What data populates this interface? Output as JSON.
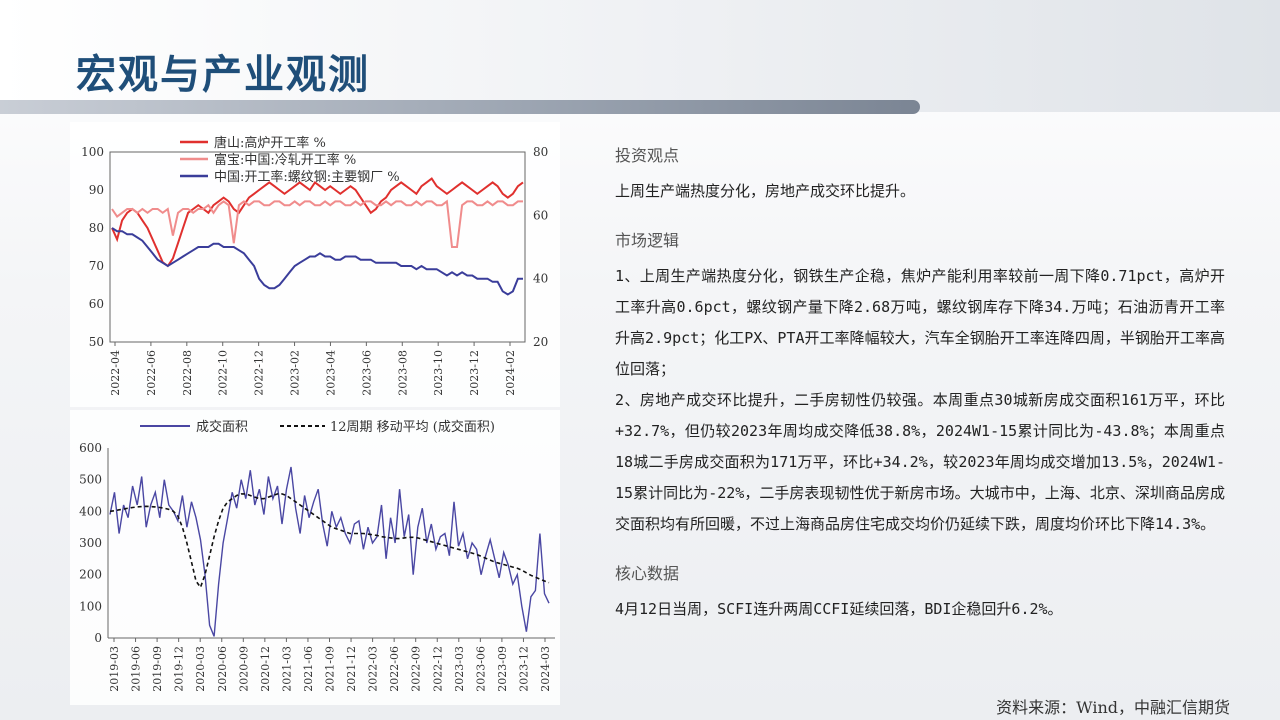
{
  "page": {
    "title": "宏观与产业观测",
    "source": "资料来源：Wind，中融汇信期货"
  },
  "sections": [
    {
      "head": "投资观点",
      "paragraphs": [
        "上周生产端热度分化，房地产成交环比提升。"
      ]
    },
    {
      "head": "市场逻辑",
      "paragraphs": [
        "1、上周生产端热度分化，钢铁生产企稳，焦炉产能利用率较前一周下降0.71pct，高炉开工率升高0.6pct，螺纹钢产量下降2.68万吨，螺纹钢库存下降34.万吨；石油沥青开工率升高2.9pct；化工PX、PTA开工率降幅较大，汽车全钢胎开工率连降四周，半钢胎开工率高位回落；",
        "2、房地产成交环比提升，二手房韧性仍较强。本周重点30城新房成交面积161万平，环比+32.7%，但仍较2023年周均成交降低38.8%，2024W1-15累计同比为-43.8%；本周重点18城二手房成交面积为171万平，环比+34.2%，较2023年周均成交增加13.5%，2024W1-15累计同比为-22%，二手房表现韧性优于新房市场。大城市中，上海、北京、深圳商品房成交面积均有所回暖，不过上海商品房住宅成交均价仍延续下跌，周度均价环比下降14.3%。"
      ]
    },
    {
      "head": "核心数据",
      "paragraphs": [
        "4月12日当周，SCFI连升两周CCFI延续回落，BDI企稳回升6.2%。"
      ]
    }
  ],
  "chart_data": [
    {
      "type": "line",
      "x_ticks": [
        "2022-04",
        "2022-06",
        "2022-08",
        "2022-10",
        "2022-12",
        "2023-02",
        "2023-04",
        "2023-06",
        "2023-08",
        "2023-10",
        "2023-12",
        "2024-02"
      ],
      "y_left": {
        "range": [
          50,
          100
        ],
        "ticks": [
          50,
          60,
          70,
          80,
          90,
          100
        ]
      },
      "y_right": {
        "range": [
          20,
          80
        ],
        "ticks": [
          20,
          40,
          60,
          80
        ]
      },
      "legend_position": "top-left",
      "series": [
        {
          "name": "唐山:高炉开工率 %",
          "axis": "left",
          "color": "#e0302e",
          "values": [
            80,
            77,
            82,
            84,
            85,
            84,
            82,
            80,
            77,
            74,
            71,
            70,
            72,
            76,
            80,
            84,
            85,
            86,
            85,
            84,
            86,
            87,
            88,
            87,
            85,
            84,
            86,
            88,
            89,
            90,
            91,
            92,
            91,
            90,
            89,
            90,
            91,
            92,
            91,
            90,
            92,
            91,
            90,
            91,
            90,
            89,
            90,
            91,
            90,
            88,
            86,
            84,
            85,
            87,
            88,
            90,
            91,
            92,
            91,
            90,
            89,
            91,
            92,
            93,
            91,
            90,
            89,
            90,
            91,
            92,
            91,
            90,
            89,
            90,
            91,
            92,
            91,
            89,
            88,
            89,
            91,
            92
          ]
        },
        {
          "name": "富宝:中国:冷轧开工率 %",
          "axis": "left",
          "color": "#f08c8c",
          "values": [
            85,
            83,
            84,
            85,
            85,
            84,
            85,
            84,
            85,
            85,
            84,
            85,
            78,
            84,
            85,
            85,
            84,
            85,
            85,
            86,
            84,
            86,
            87,
            86,
            76,
            86,
            87,
            86,
            87,
            87,
            86,
            86,
            87,
            87,
            86,
            86,
            87,
            86,
            87,
            87,
            86,
            86,
            87,
            86,
            87,
            87,
            86,
            86,
            87,
            86,
            87,
            87,
            86,
            86,
            87,
            86,
            87,
            87,
            86,
            86,
            87,
            86,
            87,
            87,
            86,
            86,
            87,
            75,
            75,
            86,
            87,
            87,
            86,
            86,
            87,
            86,
            87,
            87,
            86,
            86,
            87,
            87
          ]
        },
        {
          "name": "中国:开工率:螺纹钢:主要钢厂 %",
          "axis": "right",
          "color": "#3a3d9a",
          "values": [
            56,
            55,
            55,
            54,
            54,
            53,
            52,
            50,
            48,
            46,
            45,
            44,
            45,
            46,
            47,
            48,
            49,
            50,
            50,
            50,
            51,
            51,
            50,
            50,
            50,
            49,
            48,
            46,
            44,
            40,
            38,
            37,
            37,
            38,
            40,
            42,
            44,
            45,
            46,
            47,
            47,
            48,
            47,
            47,
            46,
            46,
            47,
            47,
            47,
            46,
            46,
            46,
            45,
            45,
            45,
            45,
            45,
            44,
            44,
            44,
            43,
            44,
            43,
            43,
            43,
            42,
            41,
            42,
            41,
            42,
            41,
            41,
            40,
            40,
            40,
            39,
            39,
            36,
            35,
            36,
            40,
            40
          ]
        }
      ]
    },
    {
      "type": "line",
      "x_ticks": [
        "2019-03",
        "2019-06",
        "2019-09",
        "2019-12",
        "2020-03",
        "2020-06",
        "2020-09",
        "2020-12",
        "2021-03",
        "2021-06",
        "2021-09",
        "2021-12",
        "2022-03",
        "2022-06",
        "2022-09",
        "2022-12",
        "2023-03",
        "2023-06",
        "2023-09",
        "2023-12",
        "2024-03"
      ],
      "y_range": [
        0,
        600
      ],
      "y_ticks": [
        0,
        100,
        200,
        300,
        400,
        500,
        600
      ],
      "legend_position": "top",
      "series": [
        {
          "name": "成交面积",
          "color": "#4a47a3",
          "values": [
            390,
            460,
            330,
            420,
            380,
            480,
            420,
            510,
            350,
            420,
            460,
            380,
            500,
            420,
            400,
            370,
            450,
            350,
            430,
            380,
            310,
            200,
            40,
            5,
            170,
            300,
            380,
            460,
            410,
            500,
            440,
            530,
            420,
            470,
            390,
            510,
            440,
            480,
            360,
            470,
            540,
            410,
            330,
            450,
            380,
            430,
            470,
            360,
            290,
            400,
            350,
            380,
            330,
            300,
            360,
            370,
            280,
            350,
            300,
            320,
            420,
            250,
            380,
            300,
            470,
            320,
            390,
            200,
            350,
            410,
            300,
            360,
            280,
            320,
            330,
            260,
            430,
            290,
            330,
            250,
            300,
            280,
            200,
            260,
            310,
            250,
            190,
            270,
            230,
            170,
            200,
            100,
            20,
            130,
            150,
            330,
            140,
            110
          ]
        },
        {
          "name": "12周期 移动平均 (成交面积)",
          "color": "#111111",
          "dashed": true,
          "values": [
            400,
            402,
            405,
            407,
            410,
            412,
            414,
            415,
            416,
            415,
            414,
            412,
            410,
            406,
            400,
            385,
            350,
            300,
            240,
            180,
            160,
            200,
            260,
            320,
            370,
            410,
            430,
            440,
            450,
            455,
            455,
            450,
            445,
            440,
            440,
            445,
            450,
            455,
            455,
            450,
            440,
            430,
            420,
            410,
            400,
            390,
            380,
            370,
            360,
            350,
            345,
            340,
            335,
            330,
            330,
            330,
            330,
            328,
            326,
            324,
            320,
            318,
            316,
            314,
            314,
            316,
            318,
            318,
            316,
            312,
            308,
            304,
            300,
            296,
            292,
            288,
            284,
            280,
            276,
            272,
            268,
            264,
            258,
            252,
            246,
            240,
            236,
            232,
            228,
            224,
            220,
            214,
            206,
            198,
            192,
            186,
            180,
            175
          ]
        }
      ]
    }
  ]
}
